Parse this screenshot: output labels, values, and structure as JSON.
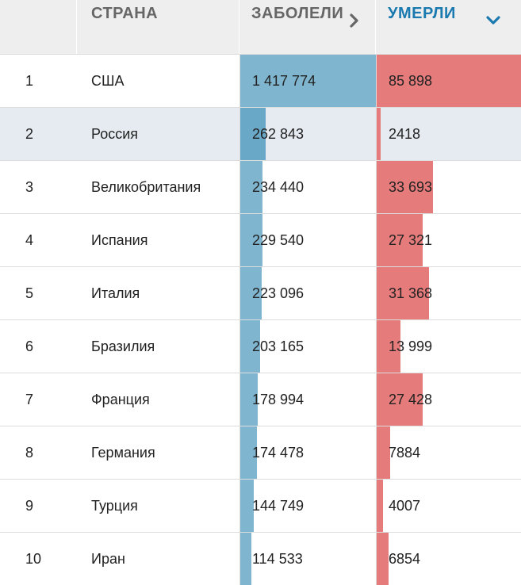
{
  "header": {
    "country": "СТРАНА",
    "cases": "ЗАБОЛЕЛИ",
    "deaths": "УМЕРЛИ",
    "cases_icon": "chevron-right-icon",
    "deaths_icon": "chevron-down-icon",
    "active_sort_color": "#1a7ab0"
  },
  "colors": {
    "cases_bar": "#7fb5cf",
    "deaths_bar": "#e67b7b",
    "highlight_row": "#e6ebf1"
  },
  "max": {
    "cases": 1417774,
    "deaths": 85898
  },
  "rows": [
    {
      "rank": "1",
      "country": "США",
      "cases_text": "1 417 774",
      "cases": 1417774,
      "deaths_text": "85 898",
      "deaths": 85898,
      "highlight": false
    },
    {
      "rank": "2",
      "country": "Россия",
      "cases_text": "262 843",
      "cases": 262843,
      "deaths_text": "2418",
      "deaths": 2418,
      "highlight": true
    },
    {
      "rank": "3",
      "country": "Великобритания",
      "cases_text": "234 440",
      "cases": 234440,
      "deaths_text": "33 693",
      "deaths": 33693,
      "highlight": false
    },
    {
      "rank": "4",
      "country": "Испания",
      "cases_text": "229 540",
      "cases": 229540,
      "deaths_text": "27 321",
      "deaths": 27321,
      "highlight": false
    },
    {
      "rank": "5",
      "country": "Италия",
      "cases_text": "223 096",
      "cases": 223096,
      "deaths_text": "31 368",
      "deaths": 31368,
      "highlight": false
    },
    {
      "rank": "6",
      "country": "Бразилия",
      "cases_text": "203 165",
      "cases": 203165,
      "deaths_text": "13 999",
      "deaths": 13999,
      "highlight": false
    },
    {
      "rank": "7",
      "country": "Франция",
      "cases_text": "178 994",
      "cases": 178994,
      "deaths_text": "27 428",
      "deaths": 27428,
      "highlight": false
    },
    {
      "rank": "8",
      "country": "Германия",
      "cases_text": "174 478",
      "cases": 174478,
      "deaths_text": "7884",
      "deaths": 7884,
      "highlight": false
    },
    {
      "rank": "9",
      "country": "Турция",
      "cases_text": "144 749",
      "cases": 144749,
      "deaths_text": "4007",
      "deaths": 4007,
      "highlight": false
    },
    {
      "rank": "10",
      "country": "Иран",
      "cases_text": "114 533",
      "cases": 114533,
      "deaths_text": "6854",
      "deaths": 6854,
      "highlight": false
    }
  ]
}
